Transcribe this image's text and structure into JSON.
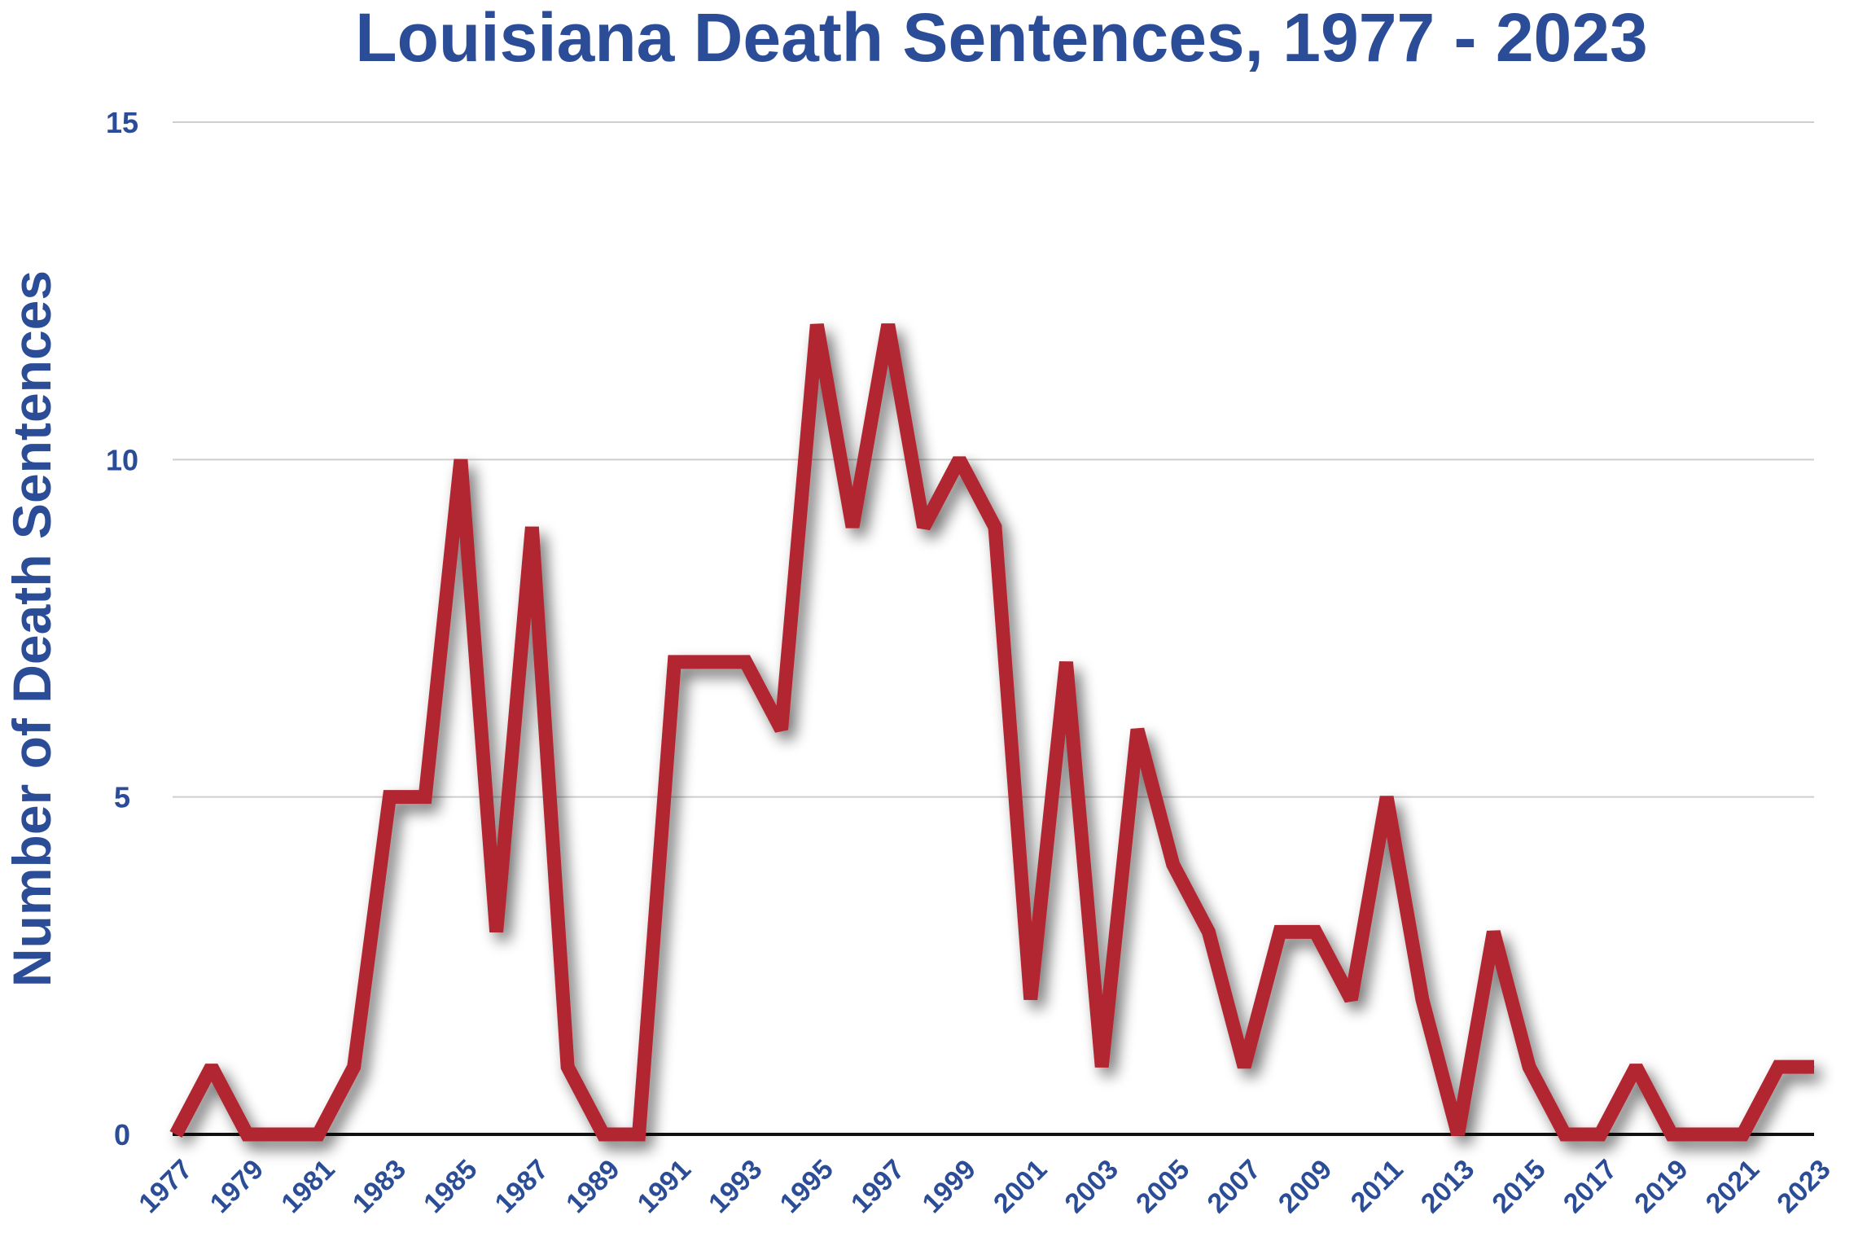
{
  "chart_data": {
    "type": "line",
    "title": "Louisiana Death Sentences, 1977 - 2023",
    "xlabel": "",
    "ylabel": "Number of Death Sentences",
    "ylim": [
      0,
      15
    ],
    "yticks": [
      0,
      5,
      10,
      15
    ],
    "grid": true,
    "legend": "none",
    "x": [
      1977,
      1978,
      1979,
      1980,
      1981,
      1982,
      1983,
      1984,
      1985,
      1986,
      1987,
      1988,
      1989,
      1990,
      1991,
      1992,
      1993,
      1994,
      1995,
      1996,
      1997,
      1998,
      1999,
      2000,
      2001,
      2002,
      2003,
      2004,
      2005,
      2006,
      2007,
      2008,
      2009,
      2010,
      2011,
      2012,
      2013,
      2014,
      2015,
      2016,
      2017,
      2018,
      2019,
      2020,
      2021,
      2022,
      2023
    ],
    "xtick_labels": [
      "1977",
      "1979",
      "1981",
      "1983",
      "1985",
      "1987",
      "1989",
      "1991",
      "1993",
      "1995",
      "1997",
      "1999",
      "2001",
      "2003",
      "2005",
      "2007",
      "2009",
      "2011",
      "2013",
      "2015",
      "2017",
      "2019",
      "2021",
      "2023"
    ],
    "series": [
      {
        "name": "Death Sentences",
        "color": "#b22832",
        "values": [
          0,
          1,
          0,
          0,
          0,
          1,
          5,
          5,
          10,
          3,
          9,
          1,
          0,
          0,
          7,
          7,
          7,
          6,
          12,
          9,
          12,
          9,
          10,
          9,
          2,
          7,
          1,
          6,
          4,
          3,
          1,
          3,
          3,
          2,
          5,
          2,
          0,
          3,
          1,
          0,
          0,
          1,
          0,
          0,
          0,
          1,
          1
        ]
      }
    ]
  }
}
